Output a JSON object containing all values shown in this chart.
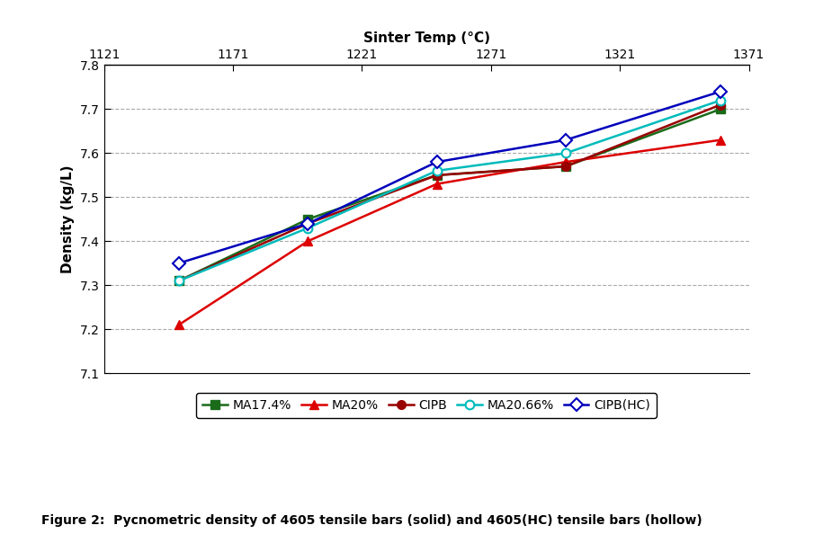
{
  "x_values": [
    1150,
    1200,
    1250,
    1300,
    1360
  ],
  "series": {
    "MA17.4%": {
      "y": [
        7.31,
        7.45,
        7.55,
        7.57,
        7.7
      ],
      "color": "#1a6b1a",
      "marker": "s",
      "marker_filled": true,
      "linewidth": 1.8,
      "markersize": 7
    },
    "MA20%": {
      "y": [
        7.21,
        7.4,
        7.53,
        7.58,
        7.63
      ],
      "color": "#dd0000",
      "marker": "^",
      "marker_filled": true,
      "linewidth": 1.8,
      "markersize": 7
    },
    "CIPB": {
      "y": [
        7.31,
        7.44,
        7.55,
        7.57,
        7.71
      ],
      "color": "#990000",
      "marker": "o",
      "marker_filled": true,
      "linewidth": 1.8,
      "markersize": 7
    },
    "MA20.66%": {
      "y": [
        7.31,
        7.43,
        7.56,
        7.6,
        7.72
      ],
      "color": "#00bbbb",
      "marker": "o",
      "marker_filled": false,
      "linewidth": 1.8,
      "markersize": 7
    },
    "CIPB(HC)": {
      "y": [
        7.35,
        7.44,
        7.58,
        7.63,
        7.74
      ],
      "color": "#0000bb",
      "marker": "D",
      "marker_filled": false,
      "linewidth": 1.8,
      "markersize": 7
    }
  },
  "xlabel_top": "Sinter Temp (°C)",
  "ylabel": "Density (kg/L)",
  "xlim": [
    1121,
    1371
  ],
  "ylim": [
    7.1,
    7.8
  ],
  "xticks_top": [
    1121,
    1171,
    1221,
    1271,
    1321,
    1371
  ],
  "yticks": [
    7.1,
    7.2,
    7.3,
    7.4,
    7.5,
    7.6,
    7.7,
    7.8
  ],
  "grid_color": "#aaaaaa",
  "grid_style": "--",
  "figure_caption": "Figure 2:  Pycnometric density of 4605 tensile bars (solid) and 4605(HC) tensile bars (hollow)",
  "background_color": "#ffffff",
  "legend_order": [
    "MA17.4%",
    "MA20%",
    "CIPB",
    "MA20.66%",
    "CIPB(HC)"
  ]
}
